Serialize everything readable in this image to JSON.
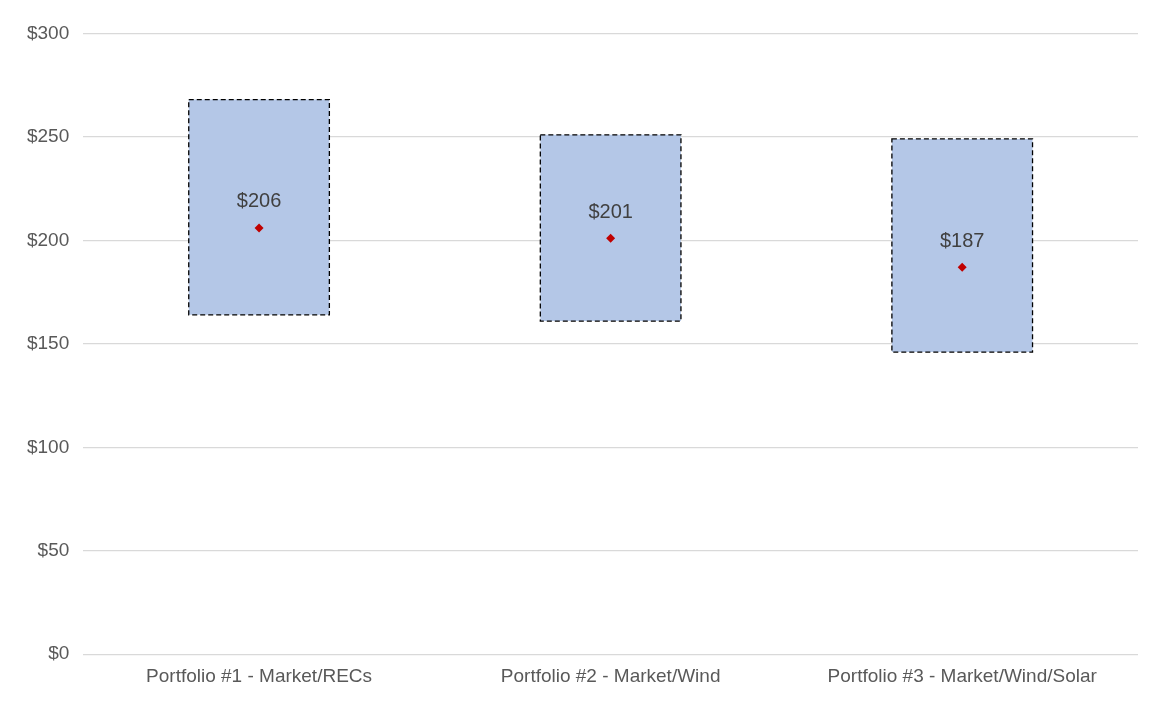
{
  "chart_data": {
    "type": "bar",
    "categories": [
      "Portfolio #1 - Market/RECs",
      "Portfolio #2 - Market/Wind",
      "Portfolio #3 - Market/Wind/Solar"
    ],
    "series": [
      {
        "color": "#b4c7e7",
        "line_style": "dashed",
        "base": [
          164,
          161,
          146
        ],
        "values": [
          104,
          90,
          103
        ]
      },
      {
        "type": "scatter",
        "color": "#c00000",
        "marker": "diamond",
        "x": [
          "Portfolio #1 - Market/RECs",
          "Portfolio #2 - Market/Wind",
          "Portfolio #3 - Market/Wind/Solar"
        ],
        "values": [
          206,
          201,
          187
        ],
        "value_labels": [
          "$206",
          "$201",
          "$187"
        ]
      }
    ],
    "ylim": [
      0,
      300
    ],
    "yticks": [
      {
        "value": 0,
        "label": "$0"
      },
      {
        "value": 50,
        "label": "$50"
      },
      {
        "value": 100,
        "label": "$100"
      },
      {
        "value": 150,
        "label": "$150"
      },
      {
        "value": 200,
        "label": "$200"
      },
      {
        "value": 250,
        "label": "$250"
      },
      {
        "value": 300,
        "label": "$300"
      }
    ],
    "grid": "y",
    "legend": false
  }
}
